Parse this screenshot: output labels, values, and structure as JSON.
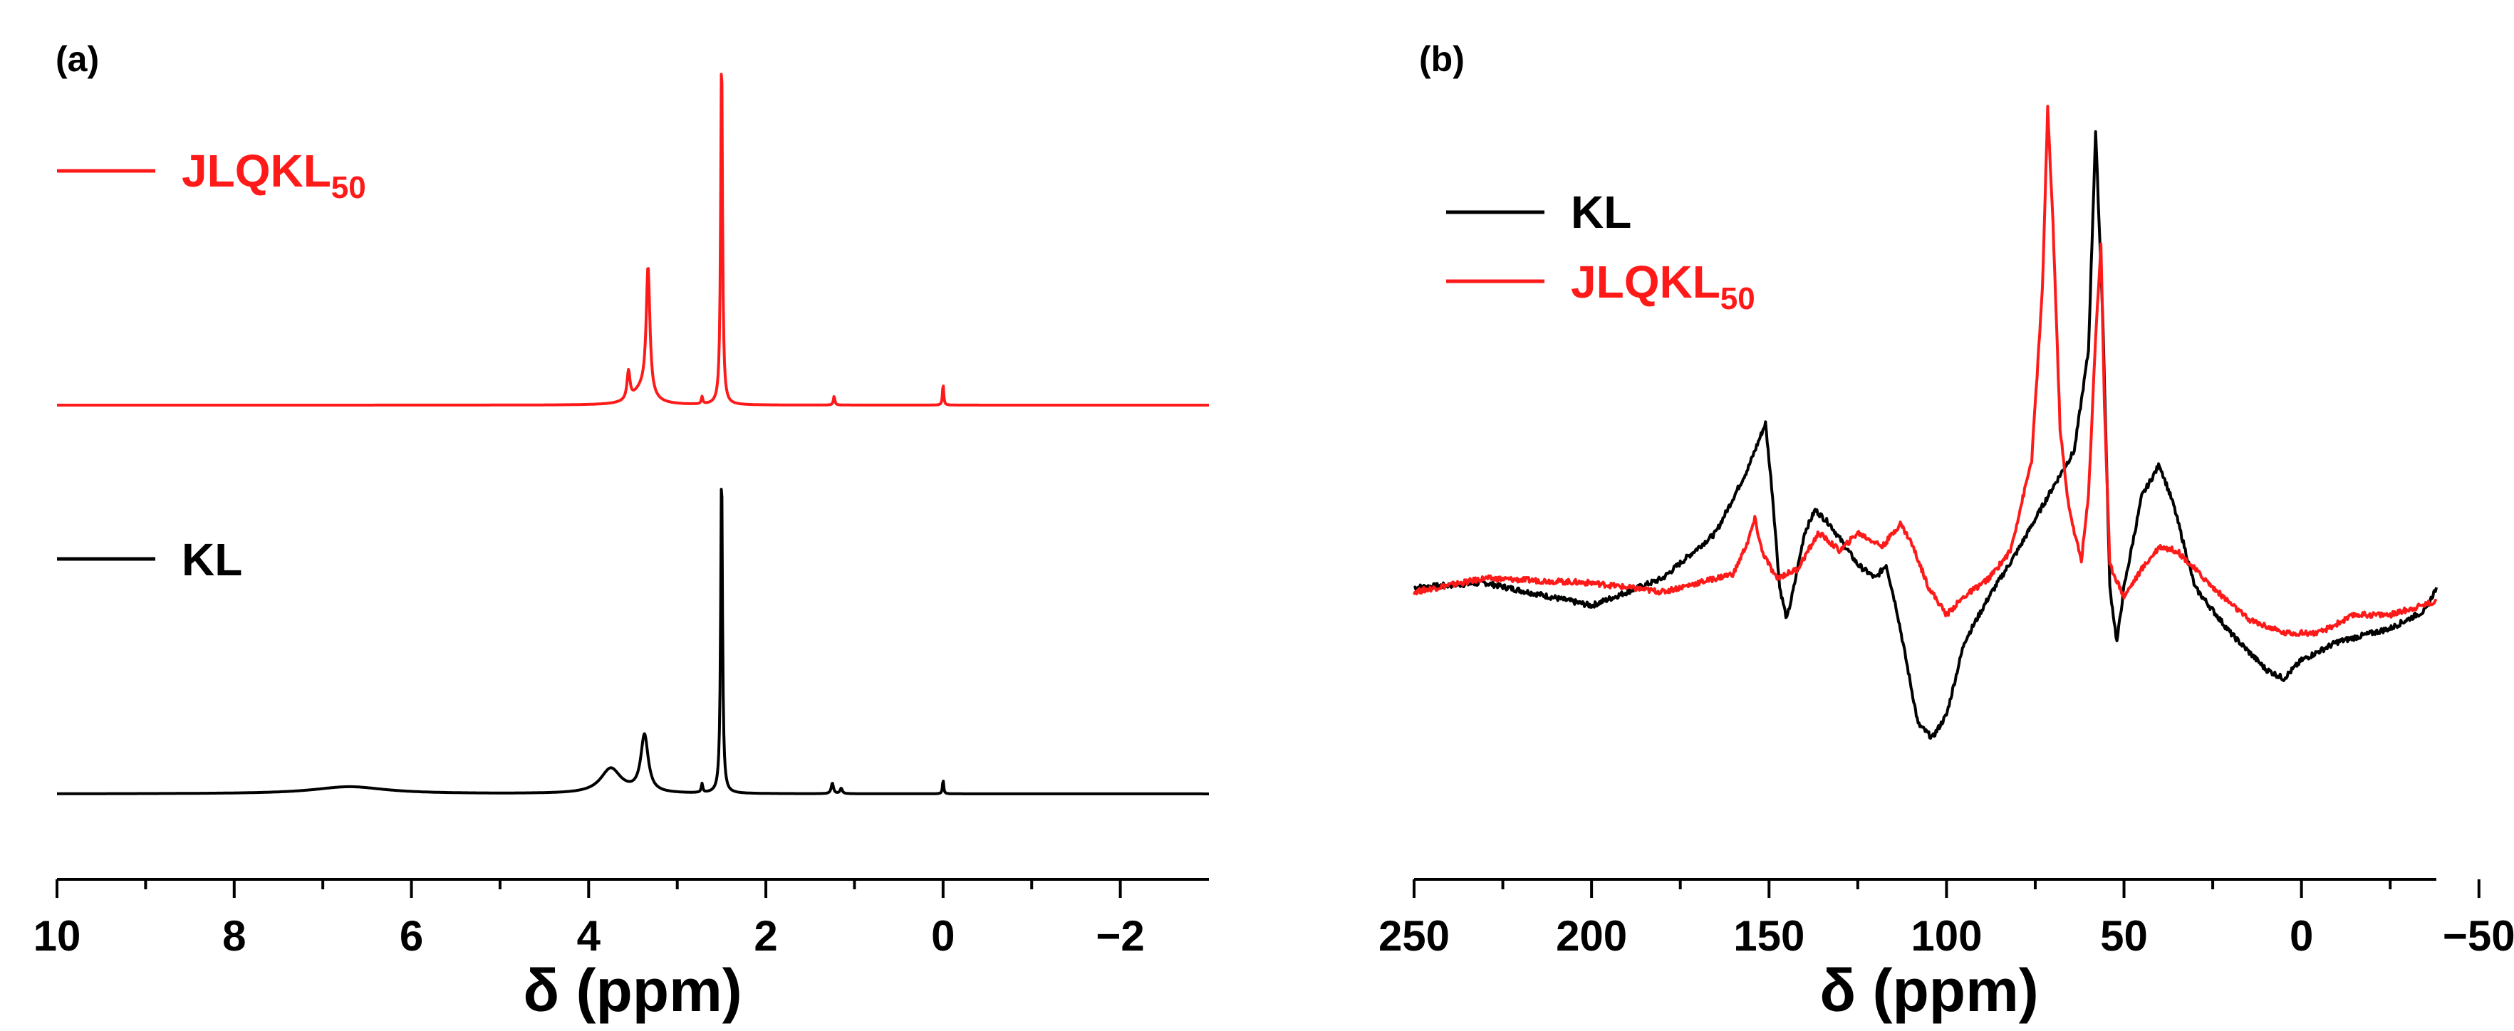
{
  "colors": {
    "kl": "#000000",
    "jlqkl": "#ff1a1a"
  },
  "chart_data": [
    {
      "panel": "(a)",
      "type": "line",
      "title": "",
      "xlabel": "δ (ppm)",
      "ylabel": "",
      "xlim": [
        10,
        -3
      ],
      "xticks": [
        10,
        8,
        6,
        4,
        2,
        0,
        -2
      ],
      "xtick_labels": [
        "10",
        "8",
        "6",
        "4",
        "2",
        "0",
        "−2"
      ],
      "legend": [
        {
          "name": "JLQKL",
          "sub": "50",
          "color": "#ff1a1a"
        },
        {
          "name": "KL",
          "sub": "",
          "color": "#000000"
        }
      ],
      "series": [
        {
          "name": "JLQKL50",
          "color": "#ff1a1a",
          "baseline": 0,
          "plot_offset": 0.52,
          "peaks": [
            {
              "x": 2.5,
              "h": 1.0,
              "w": 0.012
            },
            {
              "x": 3.33,
              "h": 0.36,
              "w": 0.025
            },
            {
              "x": 3.55,
              "h": 0.08,
              "w": 0.02
            },
            {
              "x": 3.4,
              "h": 0.04,
              "w": 0.12
            },
            {
              "x": 0.0,
              "h": 0.06,
              "w": 0.008
            },
            {
              "x": 1.23,
              "h": 0.025,
              "w": 0.01
            },
            {
              "x": 2.72,
              "h": 0.02,
              "w": 0.01
            }
          ]
        },
        {
          "name": "KL",
          "color": "#000000",
          "baseline": 0,
          "plot_offset": 0.0,
          "peaks": [
            {
              "x": 2.5,
              "h": 0.92,
              "w": 0.012
            },
            {
              "x": 3.37,
              "h": 0.16,
              "w": 0.05
            },
            {
              "x": 3.75,
              "h": 0.07,
              "w": 0.14
            },
            {
              "x": 6.7,
              "h": 0.02,
              "w": 0.5
            },
            {
              "x": 0.0,
              "h": 0.04,
              "w": 0.008
            },
            {
              "x": 1.25,
              "h": 0.03,
              "w": 0.015
            },
            {
              "x": 1.15,
              "h": 0.015,
              "w": 0.015
            },
            {
              "x": 2.72,
              "h": 0.025,
              "w": 0.01
            }
          ]
        }
      ]
    },
    {
      "panel": "(b)",
      "type": "line",
      "title": "",
      "xlabel": "δ (ppm)",
      "ylabel": "",
      "xlim": [
        250,
        -38
      ],
      "xticks": [
        250,
        200,
        150,
        100,
        50,
        0,
        -50
      ],
      "xtick_labels": [
        "250",
        "200",
        "150",
        "100",
        "50",
        "0",
        "−50"
      ],
      "legend": [
        {
          "name": "KL",
          "sub": "",
          "color": "#000000"
        },
        {
          "name": "JLQKL",
          "sub": "50",
          "color": "#ff1a1a"
        }
      ],
      "series": [
        {
          "name": "KL",
          "color": "#000000",
          "points": [
            [
              250,
              0
            ],
            [
              230,
              0.01
            ],
            [
              200,
              -0.04
            ],
            [
              180,
              0.02
            ],
            [
              165,
              0.12
            ],
            [
              156,
              0.26
            ],
            [
              151,
              0.36
            ],
            [
              149,
              0.2
            ],
            [
              147,
              0.0
            ],
            [
              145,
              -0.07
            ],
            [
              143,
              0.0
            ],
            [
              140,
              0.12
            ],
            [
              137,
              0.17
            ],
            [
              133,
              0.14
            ],
            [
              125,
              0.05
            ],
            [
              120,
              0.02
            ],
            [
              117,
              0.05
            ],
            [
              114,
              -0.05
            ],
            [
              108,
              -0.3
            ],
            [
              104,
              -0.33
            ],
            [
              100,
              -0.28
            ],
            [
              95,
              -0.12
            ],
            [
              88,
              -0.02
            ],
            [
              80,
              0.08
            ],
            [
              70,
              0.22
            ],
            [
              64,
              0.3
            ],
            [
              60,
              0.52
            ],
            [
              58,
              1.0
            ],
            [
              56,
              0.6
            ],
            [
              54,
              0.0
            ],
            [
              52,
              -0.12
            ],
            [
              50,
              0.0
            ],
            [
              45,
              0.2
            ],
            [
              40,
              0.27
            ],
            [
              36,
              0.18
            ],
            [
              30,
              0.0
            ],
            [
              20,
              -0.1
            ],
            [
              10,
              -0.18
            ],
            [
              5,
              -0.2
            ],
            [
              0,
              -0.16
            ],
            [
              -10,
              -0.12
            ],
            [
              -25,
              -0.09
            ],
            [
              -35,
              -0.05
            ],
            [
              -38,
              0.0
            ]
          ]
        },
        {
          "name": "JLQKL50",
          "color": "#ff1a1a",
          "points": [
            [
              250,
              -0.01
            ],
            [
              230,
              0.02
            ],
            [
              200,
              0.01
            ],
            [
              180,
              -0.01
            ],
            [
              160,
              0.03
            ],
            [
              156,
              0.1
            ],
            [
              154,
              0.15
            ],
            [
              152,
              0.08
            ],
            [
              148,
              0.02
            ],
            [
              142,
              0.04
            ],
            [
              136,
              0.12
            ],
            [
              130,
              0.08
            ],
            [
              125,
              0.12
            ],
            [
              118,
              0.09
            ],
            [
              113,
              0.14
            ],
            [
              110,
              0.1
            ],
            [
              105,
              0.0
            ],
            [
              100,
              -0.06
            ],
            [
              95,
              -0.02
            ],
            [
              88,
              0.02
            ],
            [
              82,
              0.08
            ],
            [
              76,
              0.28
            ],
            [
              73,
              0.65
            ],
            [
              71.5,
              1.05
            ],
            [
              70,
              0.8
            ],
            [
              68,
              0.35
            ],
            [
              66,
              0.2
            ],
            [
              64,
              0.12
            ],
            [
              62,
              0.06
            ],
            [
              60,
              0.2
            ],
            [
              58,
              0.55
            ],
            [
              56.5,
              0.75
            ],
            [
              55.5,
              0.4
            ],
            [
              54,
              0.05
            ],
            [
              50,
              -0.02
            ],
            [
              45,
              0.04
            ],
            [
              40,
              0.09
            ],
            [
              35,
              0.08
            ],
            [
              25,
              0.0
            ],
            [
              15,
              -0.07
            ],
            [
              5,
              -0.1
            ],
            [
              -5,
              -0.1
            ],
            [
              -15,
              -0.06
            ],
            [
              -25,
              -0.06
            ],
            [
              -38,
              -0.03
            ]
          ]
        }
      ]
    }
  ]
}
